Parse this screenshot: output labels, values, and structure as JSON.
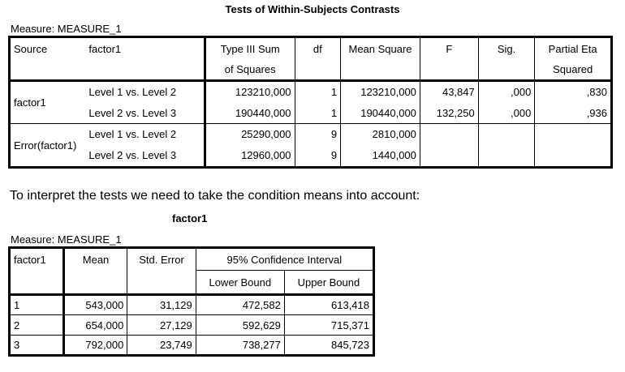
{
  "table1": {
    "title": "Tests of Within-Subjects Contrasts",
    "measure": "Measure: MEASURE_1",
    "headers": {
      "source": "Source",
      "factor": "factor1",
      "ss_line1": "Type III Sum",
      "ss_line2": "of Squares",
      "df": "df",
      "ms": "Mean Square",
      "f": "F",
      "sig": "Sig.",
      "eta_line1": "Partial Eta",
      "eta_line2": "Squared"
    },
    "groups": [
      {
        "source": "factor1",
        "rows": [
          {
            "level": "Level 1 vs. Level 2",
            "ss": "123210,000",
            "df": "1",
            "ms": "123210,000",
            "f": "43,847",
            "sig": ",000",
            "eta": ",830"
          },
          {
            "level": "Level 2 vs. Level 3",
            "ss": "190440,000",
            "df": "1",
            "ms": "190440,000",
            "f": "132,250",
            "sig": ",000",
            "eta": ",936"
          }
        ]
      },
      {
        "source": "Error(factor1)",
        "rows": [
          {
            "level": "Level 1 vs. Level 2",
            "ss": "25290,000",
            "df": "9",
            "ms": "2810,000",
            "f": "",
            "sig": "",
            "eta": ""
          },
          {
            "level": "Level 2 vs. Level 3",
            "ss": "12960,000",
            "df": "9",
            "ms": "1440,000",
            "f": "",
            "sig": "",
            "eta": ""
          }
        ]
      }
    ]
  },
  "note": "To interpret the tests we need to take the condition means into account:",
  "table2": {
    "title": "factor1",
    "measure": "Measure: MEASURE_1",
    "headers": {
      "factor": "factor1",
      "mean": "Mean",
      "se": "Std. Error",
      "ci": "95% Confidence Interval",
      "lower": "Lower Bound",
      "upper": "Upper Bound"
    },
    "rows": [
      {
        "factor": "1",
        "mean": "543,000",
        "se": "31,129",
        "lower": "472,582",
        "upper": "613,418"
      },
      {
        "factor": "2",
        "mean": "654,000",
        "se": "27,129",
        "lower": "592,629",
        "upper": "715,371"
      },
      {
        "factor": "3",
        "mean": "792,000",
        "se": "23,749",
        "lower": "738,277",
        "upper": "845,723"
      }
    ]
  }
}
